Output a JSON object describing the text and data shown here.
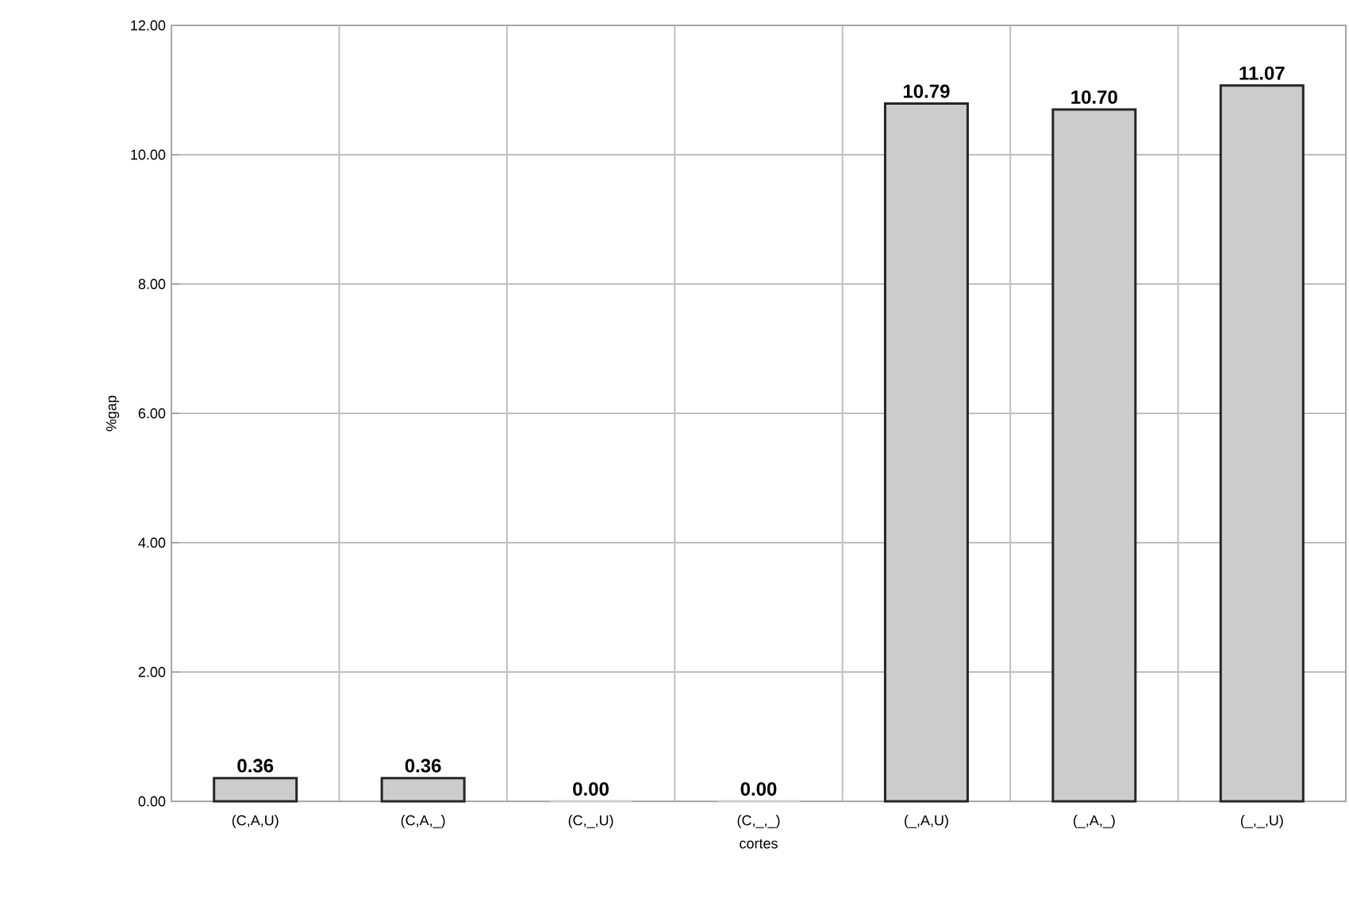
{
  "chart_data": {
    "type": "bar",
    "xlabel": "cortes",
    "ylabel": "%gap",
    "categories": [
      "(C,A,U)",
      "(C,A,_)",
      "(C,_,U)",
      "(C,_,_)",
      "(_,A,U)",
      "(_,A,_)",
      "(_,_,U)"
    ],
    "values": [
      0.36,
      0.36,
      0.0,
      0.0,
      10.79,
      10.7,
      11.07
    ],
    "value_labels": [
      "0.36",
      "0.36",
      "0.00",
      "0.00",
      "10.79",
      "10.70",
      "11.07"
    ],
    "color": "#cccccc",
    "ylim": [
      0,
      12
    ],
    "yticks": [
      {
        "value": 0,
        "label": "0.00"
      },
      {
        "value": 2,
        "label": "2.00"
      },
      {
        "value": 4,
        "label": "4.00"
      },
      {
        "value": 6,
        "label": "6.00"
      },
      {
        "value": 8,
        "label": "8.00"
      },
      {
        "value": 10,
        "label": "10.00"
      },
      {
        "value": 12,
        "label": "12.00"
      }
    ],
    "grid": true
  }
}
